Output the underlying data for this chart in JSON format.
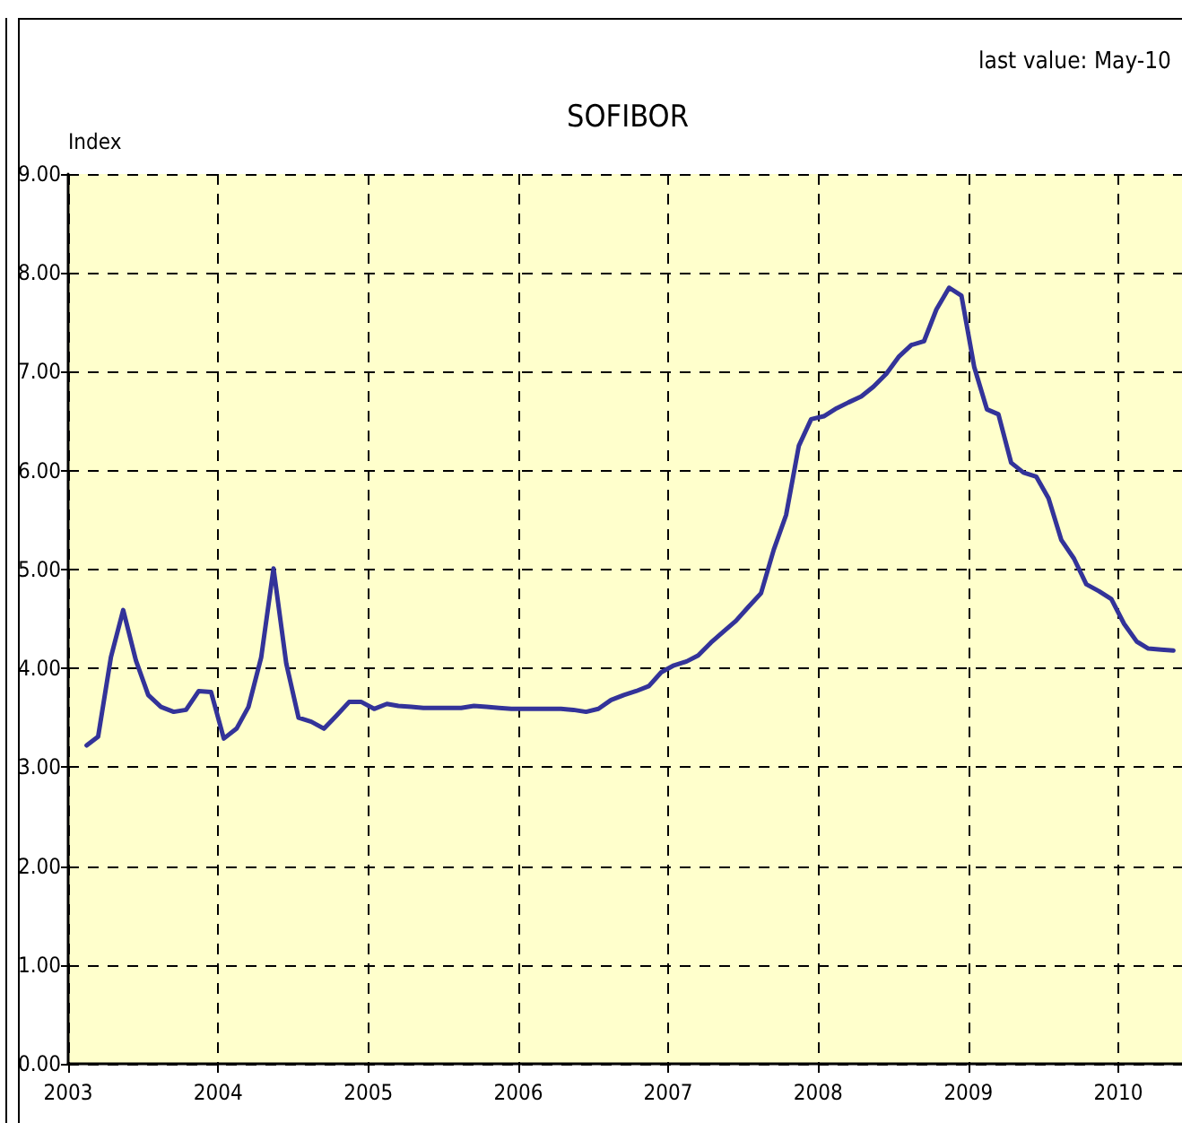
{
  "chart_data": {
    "type": "line",
    "title": "SOFIBOR",
    "ylabel": "Index",
    "annotations": [
      "last value: May-10"
    ],
    "x": [
      "2003-02-15",
      "2003-03-15",
      "2003-04-15",
      "2003-05-15",
      "2003-06-15",
      "2003-07-15",
      "2003-08-15",
      "2003-09-15",
      "2003-10-15",
      "2003-11-15",
      "2003-12-15",
      "2004-01-15",
      "2004-02-15",
      "2004-03-15",
      "2004-04-15",
      "2004-05-15",
      "2004-06-15",
      "2004-07-15",
      "2004-08-15",
      "2004-09-15",
      "2004-10-15",
      "2004-11-15",
      "2004-12-15",
      "2005-01-15",
      "2005-02-15",
      "2005-03-15",
      "2005-04-15",
      "2005-05-15",
      "2005-06-15",
      "2005-07-15",
      "2005-08-15",
      "2005-09-15",
      "2005-10-15",
      "2005-11-15",
      "2005-12-15",
      "2006-01-15",
      "2006-02-15",
      "2006-03-15",
      "2006-04-15",
      "2006-05-15",
      "2006-06-15",
      "2006-07-15",
      "2006-08-15",
      "2006-09-15",
      "2006-10-15",
      "2006-11-15",
      "2006-12-15",
      "2007-01-15",
      "2007-02-15",
      "2007-03-15",
      "2007-04-15",
      "2007-05-15",
      "2007-06-15",
      "2007-07-15",
      "2007-08-15",
      "2007-09-15",
      "2007-10-15",
      "2007-11-15",
      "2007-12-15",
      "2008-01-15",
      "2008-02-15",
      "2008-03-15",
      "2008-04-15",
      "2008-05-15",
      "2008-06-15",
      "2008-07-15",
      "2008-08-15",
      "2008-09-15",
      "2008-10-15",
      "2008-11-15",
      "2008-12-15",
      "2009-01-15",
      "2009-02-15",
      "2009-03-15",
      "2009-04-15",
      "2009-05-15",
      "2009-06-15",
      "2009-07-15",
      "2009-08-15",
      "2009-09-15",
      "2009-10-15",
      "2009-11-15",
      "2009-12-15",
      "2010-01-15",
      "2010-02-15",
      "2010-03-15",
      "2010-04-15",
      "2010-05-15"
    ],
    "series": [
      {
        "color": "#333399",
        "values": [
          3.22,
          3.31,
          4.11,
          4.59,
          4.08,
          3.73,
          3.61,
          3.56,
          3.58,
          3.77,
          3.76,
          3.29,
          3.39,
          3.61,
          4.11,
          5.01,
          4.05,
          3.5,
          3.46,
          3.39,
          3.52,
          3.66,
          3.66,
          3.59,
          3.64,
          3.62,
          3.61,
          3.6,
          3.6,
          3.6,
          3.6,
          3.62,
          3.61,
          3.6,
          3.59,
          3.59,
          3.59,
          3.59,
          3.59,
          3.58,
          3.56,
          3.59,
          3.68,
          3.73,
          3.77,
          3.82,
          3.96,
          4.03,
          4.07,
          4.13,
          4.26,
          4.37,
          4.48,
          4.62,
          4.76,
          5.2,
          5.55,
          6.25,
          6.52,
          6.55,
          6.63,
          6.69,
          6.75,
          6.85,
          6.98,
          7.15,
          7.27,
          7.31,
          7.63,
          7.85,
          7.77,
          7.05,
          6.62,
          6.57,
          6.08,
          5.98,
          5.94,
          5.72,
          5.3,
          5.11,
          4.85,
          4.78,
          4.7,
          4.45,
          4.27,
          4.2,
          4.19,
          4.18
        ]
      }
    ],
    "xlim": [
      "2003-01-01",
      "2010-06-05"
    ],
    "xticks": [
      "2003",
      "2004",
      "2005",
      "2006",
      "2007",
      "2008",
      "2009",
      "2010"
    ],
    "ylim": [
      0,
      9
    ],
    "yticks": [
      {
        "value": 0,
        "label": "0.00"
      },
      {
        "value": 1,
        "label": "1.00"
      },
      {
        "value": 2,
        "label": "2.00"
      },
      {
        "value": 3,
        "label": "3.00"
      },
      {
        "value": 4,
        "label": "4.00"
      },
      {
        "value": 5,
        "label": "5.00"
      },
      {
        "value": 6,
        "label": "6.00"
      },
      {
        "value": 7,
        "label": "7.00"
      },
      {
        "value": 8,
        "label": "8.00"
      },
      {
        "value": 9,
        "label": "9.00"
      }
    ],
    "grid": true,
    "marker": "none",
    "line_style": "solid"
  }
}
